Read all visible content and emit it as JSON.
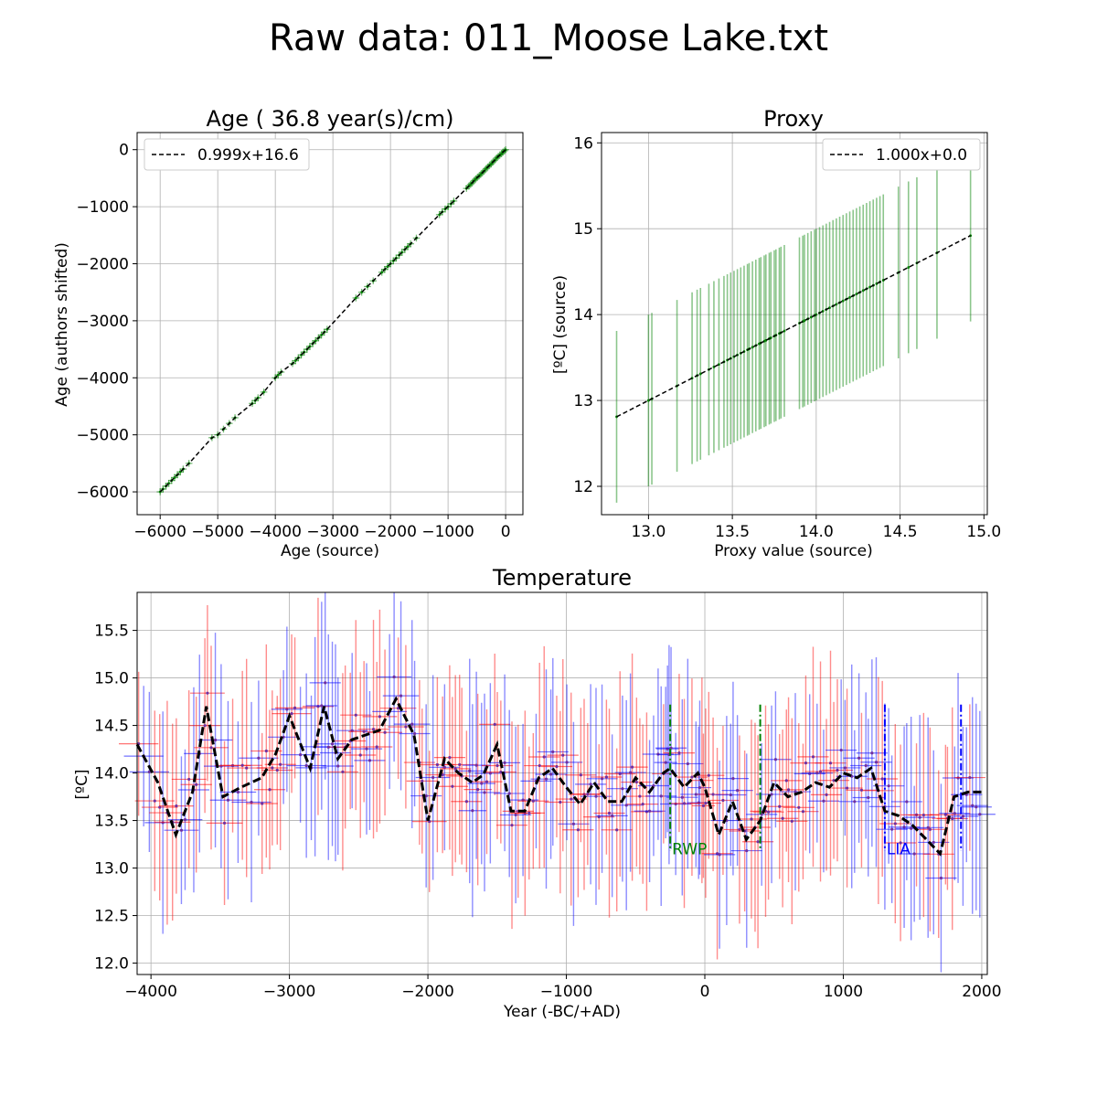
{
  "figure": {
    "suptitle": "Raw data: 011_Moose Lake.txt"
  },
  "chart_data": [
    {
      "id": "age",
      "type": "scatter",
      "title": "Age ( 36.8 year(s)/cm)",
      "xlabel": "Age (source)",
      "ylabel": "Age (authors shifted)",
      "xlim": [
        -6400,
        300
      ],
      "ylim": [
        -6400,
        300
      ],
      "xticks": [
        -6000,
        -5000,
        -4000,
        -3000,
        -2000,
        -1000,
        0
      ],
      "yticks": [
        -6000,
        -5000,
        -4000,
        -3000,
        -2000,
        -1000,
        0
      ],
      "grid": true,
      "legend": {
        "position": "top-left",
        "entries": [
          "0.999x+16.6"
        ]
      },
      "fit": {
        "slope": 0.999,
        "intercept": 16.6
      },
      "marker_color": "#008000",
      "error_x": 60,
      "error_y": 60,
      "points": [
        [
          0,
          0
        ],
        [
          -20,
          -20
        ],
        [
          -45,
          -40
        ],
        [
          -70,
          -70
        ],
        [
          -100,
          -95
        ],
        [
          -130,
          -120
        ],
        [
          -160,
          -150
        ],
        [
          -190,
          -185
        ],
        [
          -220,
          -215
        ],
        [
          -250,
          -250
        ],
        [
          -280,
          -275
        ],
        [
          -310,
          -305
        ],
        [
          -340,
          -335
        ],
        [
          -370,
          -370
        ],
        [
          -400,
          -400
        ],
        [
          -430,
          -430
        ],
        [
          -460,
          -460
        ],
        [
          -490,
          -485
        ],
        [
          -520,
          -515
        ],
        [
          -550,
          -545
        ],
        [
          -580,
          -580
        ],
        [
          -610,
          -610
        ],
        [
          -640,
          -640
        ],
        [
          -680,
          -680
        ],
        [
          -900,
          -900
        ],
        [
          -950,
          -950
        ],
        [
          -1000,
          -1000
        ],
        [
          -1050,
          -1040
        ],
        [
          -1100,
          -1090
        ],
        [
          -1150,
          -1140
        ],
        [
          -1550,
          -1550
        ],
        [
          -1650,
          -1650
        ],
        [
          -1700,
          -1700
        ],
        [
          -1750,
          -1750
        ],
        [
          -1800,
          -1800
        ],
        [
          -1850,
          -1850
        ],
        [
          -1900,
          -1900
        ],
        [
          -1950,
          -1950
        ],
        [
          -2000,
          -2000
        ],
        [
          -2050,
          -2050
        ],
        [
          -2100,
          -2100
        ],
        [
          -2150,
          -2150
        ],
        [
          -2300,
          -2300
        ],
        [
          -2400,
          -2400
        ],
        [
          -2500,
          -2500
        ],
        [
          -2600,
          -2600
        ],
        [
          -3100,
          -3150
        ],
        [
          -3150,
          -3200
        ],
        [
          -3200,
          -3250
        ],
        [
          -3250,
          -3300
        ],
        [
          -3300,
          -3350
        ],
        [
          -3350,
          -3400
        ],
        [
          -3400,
          -3450
        ],
        [
          -3450,
          -3500
        ],
        [
          -3500,
          -3550
        ],
        [
          -3550,
          -3600
        ],
        [
          -3600,
          -3650
        ],
        [
          -3650,
          -3700
        ],
        [
          -3700,
          -3750
        ],
        [
          -3900,
          -3900
        ],
        [
          -3950,
          -3950
        ],
        [
          -4000,
          -4000
        ],
        [
          -4200,
          -4250
        ],
        [
          -4300,
          -4350
        ],
        [
          -4350,
          -4400
        ],
        [
          -4400,
          -4450
        ],
        [
          -4700,
          -4700
        ],
        [
          -4800,
          -4800
        ],
        [
          -4900,
          -4900
        ],
        [
          -5000,
          -5000
        ],
        [
          -5100,
          -5050
        ],
        [
          -5500,
          -5500
        ],
        [
          -5600,
          -5600
        ],
        [
          -5650,
          -5650
        ],
        [
          -5700,
          -5700
        ],
        [
          -5750,
          -5750
        ],
        [
          -5800,
          -5800
        ],
        [
          -5850,
          -5850
        ],
        [
          -5900,
          -5900
        ],
        [
          -5950,
          -5950
        ],
        [
          -6000,
          -6000
        ]
      ]
    },
    {
      "id": "proxy",
      "type": "scatter",
      "title": "Proxy",
      "xlabel": "Proxy value (source)",
      "ylabel": "[ºC] (source)",
      "xlim": [
        12.72,
        15.02
      ],
      "ylim": [
        11.67,
        16.12
      ],
      "xticks": [
        13.0,
        13.5,
        14.0,
        14.5,
        15.0
      ],
      "yticks": [
        12,
        13,
        14,
        15,
        16
      ],
      "grid": true,
      "legend": {
        "position": "top-right",
        "entries": [
          "1.000x+0.0"
        ]
      },
      "fit": {
        "slope": 1.0,
        "intercept": 0.0
      },
      "marker_color": "#008000",
      "error_y": 1.0,
      "x": [
        12.81,
        13.0,
        13.02,
        13.17,
        13.26,
        13.29,
        13.31,
        13.36,
        13.39,
        13.42,
        13.45,
        13.47,
        13.49,
        13.51,
        13.53,
        13.55,
        13.57,
        13.59,
        13.6,
        13.62,
        13.64,
        13.66,
        13.67,
        13.69,
        13.7,
        13.72,
        13.73,
        13.75,
        13.76,
        13.78,
        13.79,
        13.81,
        13.9,
        13.92,
        13.93,
        13.95,
        13.97,
        13.99,
        14.0,
        14.02,
        14.04,
        14.06,
        14.08,
        14.1,
        14.12,
        14.14,
        14.16,
        14.18,
        14.2,
        14.22,
        14.24,
        14.26,
        14.28,
        14.3,
        14.32,
        14.34,
        14.36,
        14.38,
        14.4,
        14.49,
        14.55,
        14.6,
        14.72,
        14.92
      ]
    },
    {
      "id": "temperature",
      "type": "line",
      "title": "Temperature",
      "xlabel": "Year (-BC/+AD)",
      "ylabel": "[ºC]",
      "xlim": [
        -4100,
        2040
      ],
      "ylim": [
        11.88,
        15.9
      ],
      "xticks": [
        -4000,
        -3000,
        -2000,
        -1000,
        0,
        1000,
        2000
      ],
      "yticks": [
        12.0,
        12.5,
        13.0,
        13.5,
        14.0,
        14.5,
        15.0,
        15.5
      ],
      "grid": true,
      "series": [
        {
          "line_color": "#000000",
          "x": [
            -4100,
            -3950,
            -3820,
            -3700,
            -3600,
            -3480,
            -3350,
            -3200,
            -3100,
            -3000,
            -2850,
            -2750,
            -2650,
            -2550,
            -2450,
            -2350,
            -2230,
            -2100,
            -2000,
            -1880,
            -1780,
            -1680,
            -1600,
            -1500,
            -1400,
            -1300,
            -1200,
            -1100,
            -1000,
            -900,
            -800,
            -700,
            -600,
            -500,
            -400,
            -300,
            -250,
            -150,
            -50,
            0,
            100,
            200,
            300,
            400,
            500,
            600,
            700,
            800,
            900,
            1000,
            1100,
            1200,
            1300,
            1400,
            1500,
            1600,
            1700,
            1800,
            1900,
            2000
          ],
          "y": [
            14.3,
            13.9,
            13.35,
            13.8,
            14.7,
            13.75,
            13.85,
            13.95,
            14.2,
            14.6,
            14.05,
            14.7,
            14.15,
            14.35,
            14.4,
            14.45,
            14.78,
            14.4,
            13.5,
            14.15,
            14.0,
            13.9,
            13.98,
            14.3,
            13.6,
            13.6,
            13.95,
            14.05,
            13.85,
            13.67,
            13.9,
            13.7,
            13.7,
            13.95,
            13.8,
            14.0,
            14.05,
            13.85,
            14.0,
            13.85,
            13.35,
            13.7,
            13.3,
            13.5,
            13.9,
            13.75,
            13.8,
            13.9,
            13.85,
            14.0,
            13.95,
            14.05,
            13.6,
            13.55,
            13.45,
            13.3,
            13.15,
            13.75,
            13.8,
            13.8
          ]
        }
      ],
      "error_color_a": "#ff0000",
      "error_color_b": "#0000ff",
      "marker_color": "#7030a0",
      "annotations": [
        {
          "label": "RWP",
          "x": -250,
          "color": "#008000"
        },
        {
          "label": "LIA",
          "x": 1300,
          "color": "#0000ff"
        }
      ],
      "markers": [
        {
          "x": -250,
          "color": "#008000"
        },
        {
          "x": 400,
          "color": "#008000"
        },
        {
          "x": 1300,
          "color": "#0000ff"
        },
        {
          "x": 1850,
          "color": "#0000ff"
        }
      ]
    }
  ]
}
